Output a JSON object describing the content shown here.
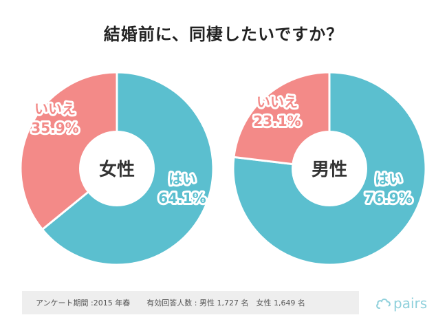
{
  "title": "結婚前に、同棲したいですか？",
  "colors": {
    "yes": "#5bbfcf",
    "no": "#f38a88",
    "hole": "#ffffff",
    "label_halo": "#ffffff"
  },
  "chart_data": [
    {
      "type": "pie",
      "variant": "donut",
      "center_label": "女性",
      "series": [
        {
          "label": "はい",
          "value_text": "64.1%",
          "value": 64.1
        },
        {
          "label": "いいえ",
          "value_text": "35.9%",
          "value": 35.9
        }
      ]
    },
    {
      "type": "pie",
      "variant": "donut",
      "center_label": "男性",
      "series": [
        {
          "label": "はい",
          "value_text": "76.9%",
          "value": 76.9
        },
        {
          "label": "いいえ",
          "value_text": "23.1%",
          "value": 23.1
        }
      ]
    }
  ],
  "footer": {
    "survey_period": "アンケート期間 :2015 年春",
    "respondents": "有効回答人数 : 男性 1,727 名　女性 1,649 名"
  },
  "logo": {
    "icon": "cloud-outline-icon",
    "text": "pairs"
  }
}
